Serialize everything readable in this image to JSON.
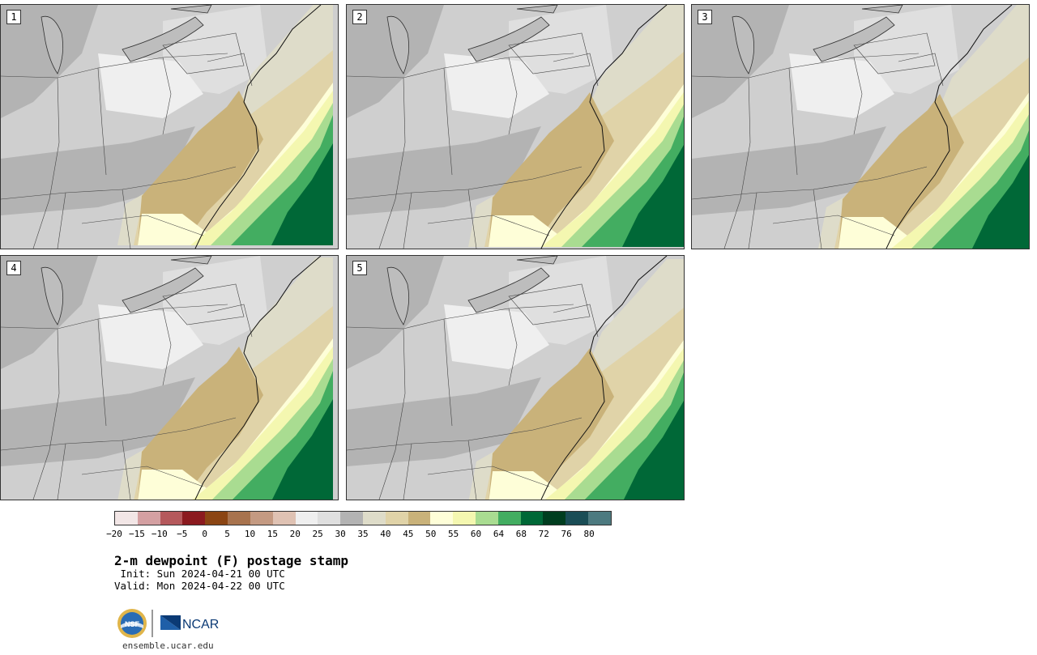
{
  "panels": [
    {
      "label": "1",
      "variant": 0
    },
    {
      "label": "2",
      "variant": 1
    },
    {
      "label": "3",
      "variant": 2
    },
    {
      "label": "4",
      "variant": 3
    },
    {
      "label": "5",
      "variant": 4
    }
  ],
  "legend": {
    "colors": [
      "#f2e6e6",
      "#d4a0a2",
      "#b5595c",
      "#8b1a1f",
      "#8b4513",
      "#a8734e",
      "#c49a82",
      "#dfc2b3",
      "#efefef",
      "#dfdfdf",
      "#b3b3b3",
      "#dedcc9",
      "#e0d3a8",
      "#c9b27a",
      "#fefed8",
      "#f4f7b0",
      "#a9dc91",
      "#43ad61",
      "#006837",
      "#003d1f",
      "#1a4d56",
      "#4d7a80"
    ],
    "ticks": [
      "−20",
      "−15",
      "−10",
      "−5",
      "0",
      "5",
      "10",
      "15",
      "20",
      "25",
      "30",
      "35",
      "40",
      "45",
      "50",
      "55",
      "60",
      "64",
      "68",
      "72",
      "76",
      "80"
    ]
  },
  "title": "2-m dewpoint (F) postage stamp",
  "init": " Init: Sun 2024-04-21 00 UTC",
  "valid": "Valid: Mon 2024-04-22 00 UTC",
  "logos": {
    "nsf": "NSF",
    "ncar": "NCAR"
  },
  "site": "ensemble.ucar.edu"
}
